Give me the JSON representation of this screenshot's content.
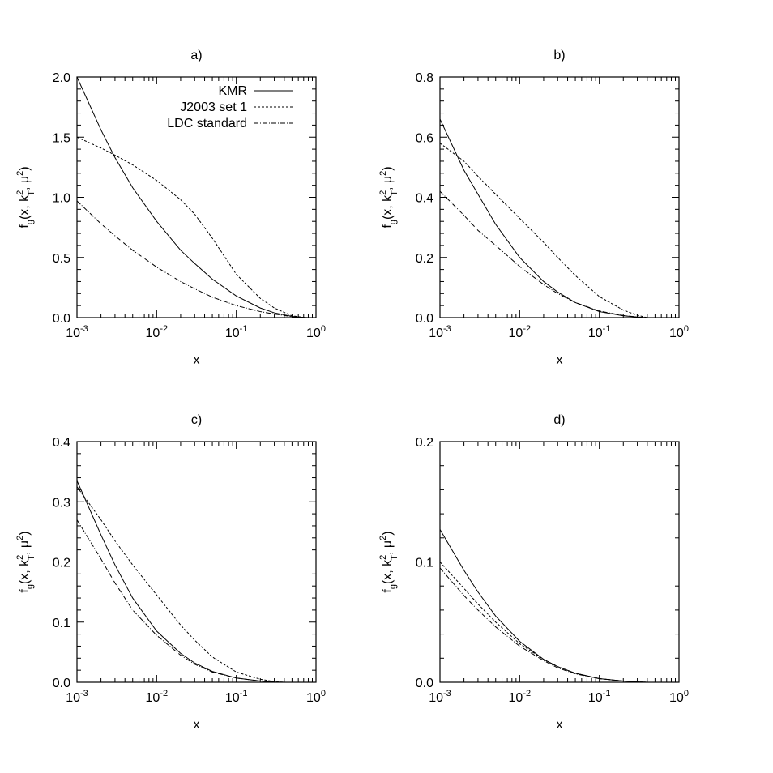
{
  "chart_data": [
    {
      "panel": "a",
      "type": "line",
      "title": "a)",
      "xlabel": "x",
      "ylabel": "f_g(x, k_T^2, μ^2)",
      "x_scale": "log",
      "xlim": [
        0.001,
        1
      ],
      "ylim": [
        0,
        2.0
      ],
      "xtick_labels": [
        "10^-3",
        "10^-2",
        "10^-1",
        "10^0"
      ],
      "ytick_labels": [
        "0.0",
        "0.5",
        "1.0",
        "1.5",
        "2.0"
      ],
      "legend": {
        "position": "top-right",
        "entries": [
          "KMR",
          "J2003 set 1",
          "LDC standard"
        ]
      },
      "series": [
        {
          "name": "KMR",
          "style": "solid",
          "x": [
            0.001,
            0.002,
            0.003,
            0.005,
            0.01,
            0.02,
            0.03,
            0.05,
            0.1,
            0.2,
            0.3,
            0.5,
            0.7,
            0.8
          ],
          "y": [
            2.0,
            1.56,
            1.33,
            1.08,
            0.8,
            0.56,
            0.45,
            0.32,
            0.18,
            0.08,
            0.04,
            0.01,
            0.002,
            0.0
          ]
        },
        {
          "name": "J2003 set 1",
          "style": "dashed",
          "x": [
            0.001,
            0.002,
            0.003,
            0.005,
            0.01,
            0.02,
            0.03,
            0.05,
            0.1,
            0.2,
            0.3,
            0.5,
            0.7,
            0.8
          ],
          "y": [
            1.5,
            1.41,
            1.35,
            1.27,
            1.14,
            0.98,
            0.86,
            0.66,
            0.36,
            0.16,
            0.08,
            0.015,
            0.002,
            0.0
          ]
        },
        {
          "name": "LDC standard",
          "style": "dashdot",
          "x": [
            0.001,
            0.002,
            0.003,
            0.005,
            0.01,
            0.02,
            0.03,
            0.05,
            0.1,
            0.2,
            0.3,
            0.5,
            0.7,
            0.8
          ],
          "y": [
            0.97,
            0.78,
            0.68,
            0.56,
            0.42,
            0.3,
            0.24,
            0.17,
            0.1,
            0.05,
            0.03,
            0.008,
            0.002,
            0.0
          ]
        }
      ]
    },
    {
      "panel": "b",
      "type": "line",
      "title": "b)",
      "xlabel": "x",
      "ylabel": "f_g(x, k_T^2, μ^2)",
      "x_scale": "log",
      "xlim": [
        0.001,
        1
      ],
      "ylim": [
        0,
        0.8
      ],
      "xtick_labels": [
        "10^-3",
        "10^-2",
        "10^-1",
        "10^0"
      ],
      "ytick_labels": [
        "0.0",
        "0.2",
        "0.4",
        "0.6",
        "0.8"
      ],
      "series": [
        {
          "name": "KMR",
          "style": "solid",
          "x": [
            0.001,
            0.002,
            0.003,
            0.005,
            0.01,
            0.02,
            0.03,
            0.05,
            0.1,
            0.2,
            0.3,
            0.4
          ],
          "y": [
            0.66,
            0.49,
            0.41,
            0.31,
            0.2,
            0.12,
            0.085,
            0.05,
            0.02,
            0.006,
            0.002,
            0.0
          ]
        },
        {
          "name": "J2003 set 1",
          "style": "dashed",
          "x": [
            0.001,
            0.002,
            0.003,
            0.005,
            0.01,
            0.02,
            0.03,
            0.05,
            0.1,
            0.2,
            0.3,
            0.4
          ],
          "y": [
            0.58,
            0.52,
            0.47,
            0.41,
            0.33,
            0.25,
            0.2,
            0.14,
            0.07,
            0.025,
            0.008,
            0.0
          ]
        },
        {
          "name": "LDC standard",
          "style": "dashdot",
          "x": [
            0.001,
            0.002,
            0.003,
            0.005,
            0.01,
            0.02,
            0.03,
            0.05,
            0.1,
            0.2,
            0.3,
            0.4
          ],
          "y": [
            0.42,
            0.34,
            0.29,
            0.24,
            0.17,
            0.11,
            0.08,
            0.05,
            0.022,
            0.007,
            0.002,
            0.0
          ]
        }
      ]
    },
    {
      "panel": "c",
      "type": "line",
      "title": "c)",
      "xlabel": "x",
      "ylabel": "f_g(x, k_T^2, μ^2)",
      "x_scale": "log",
      "xlim": [
        0.001,
        1
      ],
      "ylim": [
        0,
        0.4
      ],
      "xtick_labels": [
        "10^-3",
        "10^-2",
        "10^-1",
        "10^0"
      ],
      "ytick_labels": [
        "0.0",
        "0.1",
        "0.2",
        "0.3",
        "0.4"
      ],
      "series": [
        {
          "name": "KMR",
          "style": "solid",
          "x": [
            0.001,
            0.002,
            0.003,
            0.005,
            0.01,
            0.02,
            0.03,
            0.05,
            0.1,
            0.2,
            0.3,
            0.4
          ],
          "y": [
            0.335,
            0.245,
            0.195,
            0.14,
            0.085,
            0.048,
            0.032,
            0.018,
            0.007,
            0.002,
            0.0005,
            0.0
          ]
        },
        {
          "name": "J2003 set 1",
          "style": "dashed",
          "x": [
            0.001,
            0.002,
            0.003,
            0.005,
            0.01,
            0.02,
            0.03,
            0.05,
            0.1,
            0.2,
            0.3,
            0.4
          ],
          "y": [
            0.325,
            0.27,
            0.235,
            0.195,
            0.145,
            0.095,
            0.07,
            0.042,
            0.017,
            0.005,
            0.001,
            0.0
          ]
        },
        {
          "name": "LDC standard",
          "style": "dashdot",
          "x": [
            0.001,
            0.002,
            0.003,
            0.005,
            0.01,
            0.02,
            0.03,
            0.05,
            0.1,
            0.2,
            0.3,
            0.4
          ],
          "y": [
            0.27,
            0.205,
            0.165,
            0.12,
            0.078,
            0.045,
            0.03,
            0.017,
            0.007,
            0.002,
            0.0005,
            0.0
          ]
        }
      ]
    },
    {
      "panel": "d",
      "type": "line",
      "title": "d)",
      "xlabel": "x",
      "ylabel": "f_g(x, k_T^2, μ^2)",
      "x_scale": "log",
      "xlim": [
        0.001,
        1
      ],
      "ylim": [
        0,
        0.2
      ],
      "xtick_labels": [
        "10^-3",
        "10^-2",
        "10^-1",
        "10^0"
      ],
      "ytick_labels": [
        "0.0",
        "0.1",
        "0.2"
      ],
      "series": [
        {
          "name": "KMR",
          "style": "solid",
          "x": [
            0.001,
            0.002,
            0.003,
            0.005,
            0.01,
            0.02,
            0.03,
            0.05,
            0.1,
            0.2,
            0.3,
            0.4
          ],
          "y": [
            0.127,
            0.093,
            0.075,
            0.055,
            0.034,
            0.019,
            0.013,
            0.0075,
            0.003,
            0.001,
            0.0003,
            0.0
          ]
        },
        {
          "name": "J2003 set 1",
          "style": "dashed",
          "x": [
            0.001,
            0.002,
            0.003,
            0.005,
            0.01,
            0.02,
            0.03,
            0.05,
            0.1,
            0.2,
            0.3,
            0.4
          ],
          "y": [
            0.1,
            0.078,
            0.065,
            0.05,
            0.032,
            0.019,
            0.013,
            0.0075,
            0.003,
            0.001,
            0.0003,
            0.0
          ]
        },
        {
          "name": "LDC standard",
          "style": "dashdot",
          "x": [
            0.001,
            0.002,
            0.003,
            0.005,
            0.01,
            0.02,
            0.03,
            0.05,
            0.1,
            0.2,
            0.3,
            0.4
          ],
          "y": [
            0.095,
            0.072,
            0.06,
            0.046,
            0.03,
            0.018,
            0.012,
            0.007,
            0.003,
            0.001,
            0.0003,
            0.0
          ]
        }
      ]
    }
  ]
}
